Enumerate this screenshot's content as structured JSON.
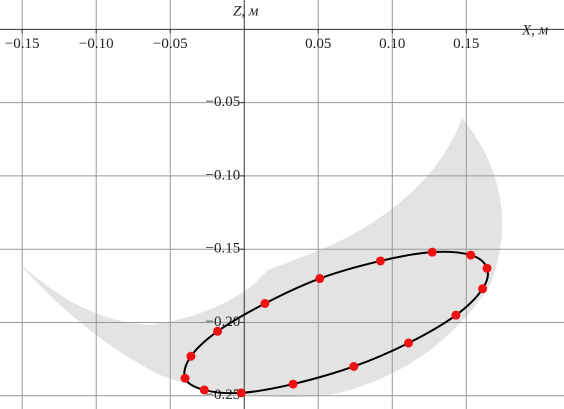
{
  "chart_data": {
    "type": "scatter",
    "x_label": "X, м",
    "y_label": "Z, м",
    "xlim": [
      -0.165,
      0.216
    ],
    "ylim": [
      -0.259,
      0.02
    ],
    "xticks": [
      {
        "value": -0.15,
        "label": "−0.15"
      },
      {
        "value": -0.1,
        "label": "−0.10"
      },
      {
        "value": -0.05,
        "label": "−0.05"
      },
      0.05,
      {
        "value": 0.1,
        "label": "0.10"
      },
      0.15
    ],
    "yticks": [
      {
        "value": -0.05,
        "label": "−0.05"
      },
      {
        "value": -0.1,
        "label": "−0.10"
      },
      {
        "value": -0.15,
        "label": "−0.15"
      },
      {
        "value": -0.2,
        "label": "−0.20"
      },
      {
        "value": -0.25,
        "label": "−0.25"
      }
    ],
    "grid": true,
    "series": [
      {
        "color": "#ee1111",
        "line_color": "#000000",
        "x": [
          0.127,
          0.153,
          0.164,
          0.161,
          0.143,
          0.111,
          0.074,
          0.033,
          -0.002,
          -0.027,
          -0.04,
          -0.036,
          -0.018,
          0.014,
          0.051,
          0.092
        ],
        "values": [
          -0.152,
          -0.154,
          -0.163,
          -0.177,
          -0.195,
          -0.214,
          -0.23,
          -0.242,
          -0.248,
          -0.246,
          -0.238,
          -0.223,
          -0.206,
          -0.187,
          -0.17,
          -0.158
        ]
      }
    ]
  }
}
